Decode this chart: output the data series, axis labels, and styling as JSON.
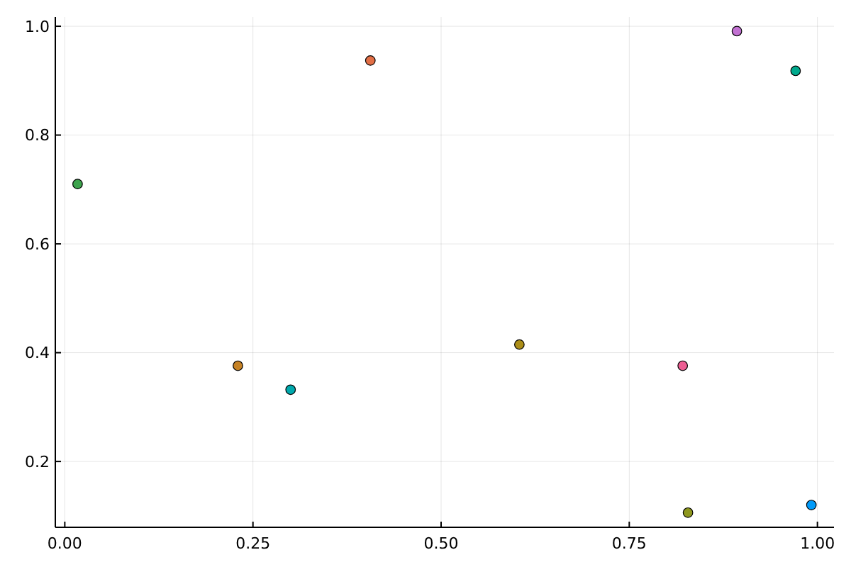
{
  "chart_data": {
    "type": "scatter",
    "x": [
      0.992,
      0.406,
      0.017,
      0.893,
      0.604,
      0.3,
      0.821,
      0.23,
      0.971,
      0.828
    ],
    "values": [
      0.12,
      0.937,
      0.71,
      0.991,
      0.415,
      0.332,
      0.376,
      0.376,
      0.918,
      0.106
    ],
    "colors": [
      "#009af9",
      "#e26f46",
      "#3da44d",
      "#c271d2",
      "#ac8e18",
      "#00a9ad",
      "#ed5e93",
      "#c68225",
      "#00a98d",
      "#8e971e"
    ],
    "xlim": [
      -0.0126,
      1.022
    ],
    "ylim": [
      0.079,
      1.017
    ],
    "xticks": [
      {
        "value": 0,
        "label": "0.00"
      },
      0.25,
      {
        "value": 0.5,
        "label": "0.50"
      },
      0.75,
      {
        "value": 1,
        "label": "1.00"
      }
    ],
    "yticks": [
      0.2,
      0.4,
      0.6,
      0.8,
      {
        "value": 1,
        "label": "1.0"
      }
    ],
    "grid": true,
    "marker": "circle"
  }
}
